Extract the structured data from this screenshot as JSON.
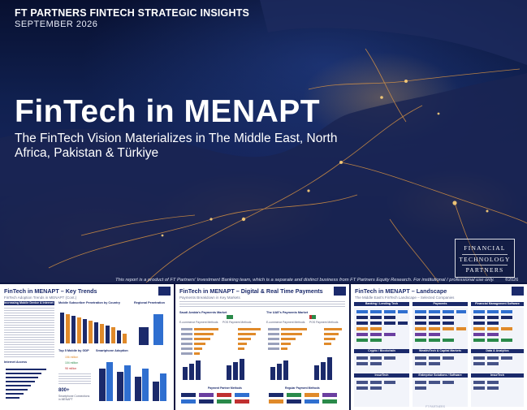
{
  "hero": {
    "tagline": "FT PARTNERS FINTECH STRATEGIC INSIGHTS",
    "date": "SEPTEMBER 2026",
    "title": "FinTech in MENAPT",
    "subtitle": "The FinTech Vision Materializes in The Middle East, North Africa, Pakistan & Türkiye",
    "colors": {
      "background": "#10204f",
      "city_lights": "#ffb347",
      "text": "#ffffff"
    }
  },
  "logo": {
    "line1": "FINANCIAL",
    "line2": "TECHNOLOGY",
    "line3": "PARTNERS"
  },
  "disclaimer": "This report is a product of FT Partners' Investment Banking team, which is a separate and distinct business from FT Partners Equity Research. For institutional / professional use only.",
  "copyright": "©2026",
  "slides": [
    {
      "title": "FinTech in MENAPT – Key Trends",
      "subtitle": "FinTech Adoption Trends in MENAPT (Cont.)",
      "left_header": "Increasing Mobile Device & Internet Penetration",
      "mid_header": "Mobile Subscriber Penetration by Country",
      "right_header": "Regional Penetration",
      "table_header": "Top 5 Mobile by GDP",
      "chart_header": "Smartphone Adoption",
      "stat_value": "800+",
      "stat_label": "Smartphone Connections in MENAPT",
      "left_stat": "Internet Access",
      "list_values": [
        "156 million",
        "104 million",
        "98 million"
      ]
    },
    {
      "title": "FinTech in MENAPT – Digital & Real Time Payments",
      "subtitle": "Payments Breakdown in Key Markets",
      "left_header": "Saudi Arabia's Payments Market",
      "right_header": "The UAE's Payments Market",
      "chart_labels": [
        "E-commerce Payment Methods",
        "POS Payment Methods"
      ],
      "footer_left": "Payment Partner Methods",
      "footer_right": "Regular Payment Methods"
    },
    {
      "title": "FinTech in MENAPT – Landscape",
      "subtitle": "The Middle East's FinTech Landscape – Selected Companies",
      "col_headers": [
        "Banking / Lending Tech",
        "Payments",
        "Financial Management Software"
      ],
      "sub_headers": [
        "Crypto / Blockchain",
        "InsurTech",
        "Wealth/Tech & Capital Markets",
        "Enterprise Solutions / Software",
        "Data & Analytics",
        "InsurTech"
      ]
    }
  ],
  "footer": "FT PARTNERS"
}
